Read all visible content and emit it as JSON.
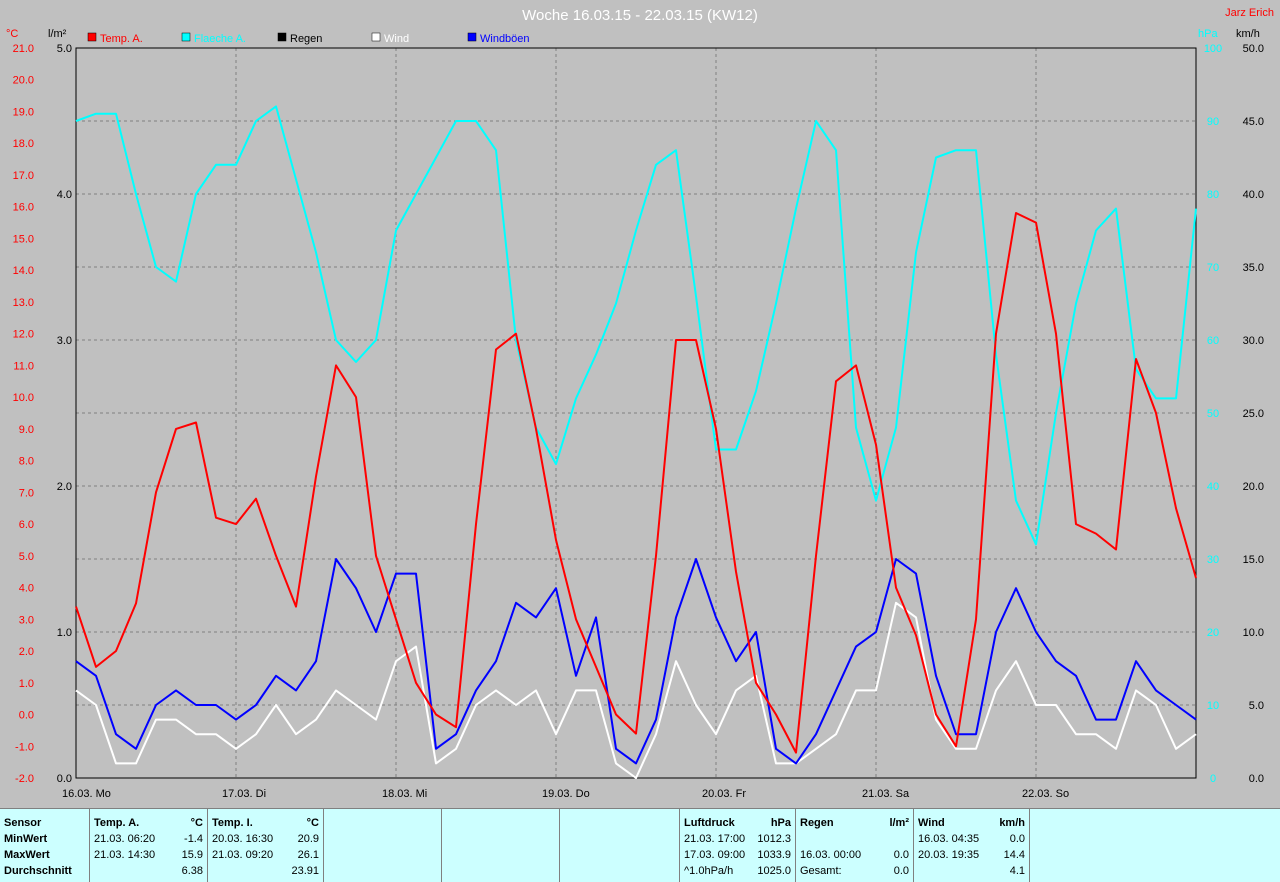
{
  "title": "Woche 16.03.15 - 22.03.15 (KW12)",
  "author": "Jarz Erich",
  "axes": {
    "left_temp_unit": "°C",
    "left_rain_unit": "l/m²",
    "right_pressure_unit": "hPa",
    "right_wind_unit": "km/h",
    "temp_ticks": [
      "21.0",
      "20.0",
      "19.0",
      "18.0",
      "17.0",
      "16.0",
      "15.0",
      "14.0",
      "13.0",
      "12.0",
      "11.0",
      "10.0",
      "9.0",
      "8.0",
      "7.0",
      "6.0",
      "5.0",
      "4.0",
      "3.0",
      "2.0",
      "1.0",
      "0.0",
      "-1.0",
      "-2.0"
    ],
    "rain_ticks": [
      "5.0",
      "4.0",
      "3.0",
      "2.0",
      "1.0",
      "0.0"
    ],
    "pressure_ticks": [
      "100",
      "90",
      "80",
      "70",
      "60",
      "50",
      "40",
      "30",
      "20",
      "10",
      "0"
    ],
    "wind_ticks": [
      "50.0",
      "45.0",
      "40.0",
      "35.0",
      "30.0",
      "25.0",
      "20.0",
      "15.0",
      "10.0",
      "5.0",
      "0.0"
    ],
    "day_labels": [
      "16.03.  Mo",
      "17.03.  Di",
      "18.03.  Mi",
      "19.03.  Do",
      "20.03.  Fr",
      "21.03.  Sa",
      "22.03.  So"
    ]
  },
  "legend": [
    {
      "name": "Temp. A.",
      "color": "#ff0000"
    },
    {
      "name": "Flaeche A.",
      "color": "#00ffff"
    },
    {
      "name": "Regen",
      "color": "#000000"
    },
    {
      "name": "Wind",
      "color": "#ffffff"
    },
    {
      "name": "Windböen",
      "color": "#0000ff"
    }
  ],
  "chart_data": {
    "type": "line",
    "title": "Woche 16.03.15 - 22.03.15 (KW12)",
    "x_unit": "hours since 16.03. 00:00",
    "temp_range": [
      -2,
      21
    ],
    "rain_range": [
      0,
      5
    ],
    "pressure_range": [
      0,
      100
    ],
    "wind_range": [
      0,
      50
    ],
    "series": [
      {
        "name": "Temp. A.",
        "axis": "temp",
        "color": "#ff0000",
        "x": [
          0,
          3,
          6,
          9,
          12,
          15,
          18,
          21,
          24,
          27,
          30,
          33,
          36,
          39,
          42,
          45,
          48,
          51,
          54,
          57,
          60,
          63,
          66,
          69,
          72,
          75,
          78,
          81,
          84,
          87,
          90,
          93,
          96,
          99,
          102,
          105,
          108,
          111,
          114,
          117,
          120,
          123,
          126,
          129,
          132,
          135,
          138,
          141,
          144,
          147,
          150,
          153,
          156,
          159,
          162,
          165,
          168
        ],
        "y": [
          3.4,
          1.5,
          2,
          3.5,
          7,
          9,
          9.2,
          6.2,
          6,
          6.8,
          5,
          3.4,
          7.5,
          11,
          10,
          5,
          3,
          1,
          0,
          -0.4,
          6,
          11.5,
          12,
          9,
          5.5,
          3,
          1.5,
          0,
          -0.6,
          5,
          11.8,
          11.8,
          9,
          4.5,
          1,
          0,
          -1.2,
          5,
          10.5,
          11,
          8.5,
          4,
          2.5,
          0,
          -1,
          3,
          12,
          15.8,
          15.5,
          12,
          6,
          5.7,
          5.2,
          11.2,
          9.5,
          6.5,
          4.3
        ]
      },
      {
        "name": "Flaeche A.",
        "axis": "pressure",
        "color": "#00ffff",
        "x": [
          0,
          3,
          6,
          9,
          12,
          15,
          18,
          21,
          24,
          27,
          30,
          33,
          36,
          39,
          42,
          45,
          48,
          51,
          54,
          57,
          60,
          63,
          66,
          69,
          72,
          75,
          78,
          81,
          84,
          87,
          90,
          93,
          96,
          99,
          102,
          105,
          108,
          111,
          114,
          117,
          120,
          123,
          126,
          129,
          132,
          135,
          138,
          141,
          144,
          147,
          150,
          153,
          156,
          159,
          162,
          165,
          168
        ],
        "y": [
          90,
          91,
          91,
          80,
          70,
          68,
          80,
          84,
          84,
          90,
          92,
          82,
          72,
          60,
          57,
          60,
          75,
          80,
          85,
          90,
          90,
          86,
          60,
          48,
          43,
          52,
          58,
          65,
          75,
          84,
          86,
          66,
          45,
          45,
          53,
          65,
          78,
          90,
          86,
          48,
          38,
          48,
          72,
          85,
          86,
          86,
          58,
          38,
          32,
          50,
          65,
          75,
          78,
          56,
          52,
          52,
          78
        ]
      },
      {
        "name": "Wind",
        "axis": "wind",
        "color": "#ffffff",
        "x": [
          0,
          3,
          6,
          9,
          12,
          15,
          18,
          21,
          24,
          27,
          30,
          33,
          36,
          39,
          42,
          45,
          48,
          51,
          54,
          57,
          60,
          63,
          66,
          69,
          72,
          75,
          78,
          81,
          84,
          87,
          90,
          93,
          96,
          99,
          102,
          105,
          108,
          111,
          114,
          117,
          120,
          123,
          126,
          129,
          132,
          135,
          138,
          141,
          144,
          147,
          150,
          153,
          156,
          159,
          162,
          165,
          168
        ],
        "y": [
          6,
          5,
          1,
          1,
          4,
          4,
          3,
          3,
          2,
          3,
          5,
          3,
          4,
          6,
          5,
          4,
          8,
          9,
          1,
          2,
          5,
          6,
          5,
          6,
          3,
          6,
          6,
          1,
          0,
          3,
          8,
          5,
          3,
          6,
          7,
          1,
          1,
          2,
          3,
          6,
          6,
          12,
          11,
          4,
          2,
          2,
          6,
          8,
          5,
          5,
          3,
          3,
          2,
          6,
          5,
          2,
          3
        ]
      },
      {
        "name": "Windböen",
        "axis": "wind",
        "color": "#0000ff",
        "x": [
          0,
          3,
          6,
          9,
          12,
          15,
          18,
          21,
          24,
          27,
          30,
          33,
          36,
          39,
          42,
          45,
          48,
          51,
          54,
          57,
          60,
          63,
          66,
          69,
          72,
          75,
          78,
          81,
          84,
          87,
          90,
          93,
          96,
          99,
          102,
          105,
          108,
          111,
          114,
          117,
          120,
          123,
          126,
          129,
          132,
          135,
          138,
          141,
          144,
          147,
          150,
          153,
          156,
          159,
          162,
          165,
          168
        ],
        "y": [
          8,
          7,
          3,
          2,
          5,
          6,
          5,
          5,
          4,
          5,
          7,
          6,
          8,
          15,
          13,
          10,
          14,
          14,
          2,
          3,
          6,
          8,
          12,
          11,
          13,
          7,
          11,
          2,
          1,
          4,
          11,
          15,
          11,
          8,
          10,
          2,
          1,
          3,
          6,
          9,
          10,
          15,
          14,
          7,
          3,
          3,
          10,
          13,
          10,
          8,
          7,
          4,
          4,
          8,
          6,
          5,
          4
        ]
      }
    ],
    "grid": true
  },
  "stats": {
    "sensor_head": "Sensor",
    "row_labels": [
      "MinWert",
      "MaxWert",
      "Durchschnitt"
    ],
    "groups": [
      {
        "name": "Temp. A.",
        "unit": "°C",
        "rows": [
          [
            "21.03.  06:20",
            "-1.4"
          ],
          [
            "21.03.  14:30",
            "15.9"
          ],
          [
            "",
            "6.38"
          ]
        ]
      },
      {
        "name": "Temp. I.",
        "unit": "°C",
        "rows": [
          [
            "20.03.  16:30",
            "20.9"
          ],
          [
            "21.03.  09:20",
            "26.1"
          ],
          [
            "",
            "23.91"
          ]
        ]
      },
      {
        "name": "Luftdruck",
        "unit": "hPa",
        "rows": [
          [
            "21.03.  17:00",
            "1012.3"
          ],
          [
            "17.03.  09:00",
            "1033.9"
          ],
          [
            "^1.0hPa/h",
            "1025.0"
          ]
        ]
      },
      {
        "name": "Regen",
        "unit": "l/m²",
        "rows": [
          [
            "",
            ""
          ],
          [
            "16.03.  00:00",
            "0.0"
          ],
          [
            "Gesamt:",
            "0.0"
          ]
        ]
      },
      {
        "name": "Wind",
        "unit": "km/h",
        "rows": [
          [
            "16.03.  04:35",
            "0.0"
          ],
          [
            "20.03.  19:35",
            "14.4"
          ],
          [
            "",
            "4.1"
          ]
        ]
      }
    ]
  }
}
